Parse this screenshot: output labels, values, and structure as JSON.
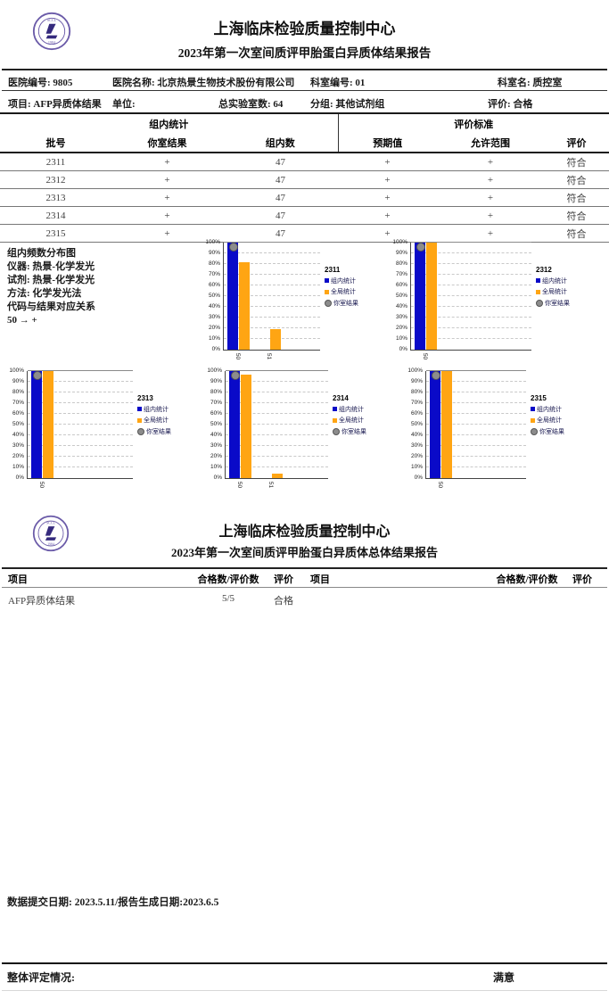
{
  "logo": {
    "top_text": "SCCL",
    "bottom_text": "1984",
    "ring_color": "#6a5aa8",
    "mark_color": "#352a7d"
  },
  "report1": {
    "center_name": "上海临床检验质量控制中心",
    "report_title": "2023年第一次室间质评甲胎蛋白异质体结果报告",
    "info_row1": [
      {
        "label": "医院编号:",
        "value": "9805"
      },
      {
        "label": "医院名称:",
        "value": "北京热景生物技术股份有限公司"
      },
      {
        "label": "科室编号:",
        "value": "01"
      },
      {
        "label": "科室名:",
        "value": "质控室"
      }
    ],
    "info_row2": [
      {
        "label": "项目:",
        "value": "AFP异质体结果"
      },
      {
        "label": "单位:",
        "value": ""
      },
      {
        "label": "总实验室数:",
        "value": "64"
      },
      {
        "label": "分组:",
        "value": "其他试剂组"
      },
      {
        "label": "评价:",
        "value": "合格"
      }
    ],
    "batch_table": {
      "group_header_left": "组内统计",
      "group_header_right": "评价标准",
      "columns": [
        "批号",
        "你室结果",
        "组内数",
        "预期值",
        "允许范围",
        "评价"
      ],
      "rows": [
        [
          "2311",
          "+",
          "47",
          "+",
          "+",
          "符合"
        ],
        [
          "2312",
          "+",
          "47",
          "+",
          "+",
          "符合"
        ],
        [
          "2313",
          "+",
          "47",
          "+",
          "+",
          "符合"
        ],
        [
          "2314",
          "+",
          "47",
          "+",
          "+",
          "符合"
        ],
        [
          "2315",
          "+",
          "47",
          "+",
          "+",
          "符合"
        ]
      ]
    },
    "freq_block": {
      "title": "组内频数分布图",
      "lines": [
        "仪器: 热景-化学发光",
        "试剂: 热景-化学发光",
        "方法: 化学发光法",
        "代码与结果对应关系",
        "50 → +"
      ]
    }
  },
  "chart_data": [
    {
      "type": "bar",
      "title": "2311",
      "categories": [
        "50",
        "51"
      ],
      "ylim": [
        0,
        100
      ],
      "grid": true,
      "yticks": [
        "0%",
        "10%",
        "20%",
        "30%",
        "40%",
        "50%",
        "60%",
        "70%",
        "80%",
        "90%",
        "100%"
      ],
      "legend_position": "right",
      "series": [
        {
          "name": "组内统计",
          "color": "#0a0ac8",
          "values": [
            100,
            0
          ]
        },
        {
          "name": "全局统计",
          "color": "#ffa513",
          "values": [
            82,
            19
          ]
        }
      ],
      "marker": {
        "name": "你室结果",
        "color": "#8c8c8c",
        "category": "50",
        "value": 96
      }
    },
    {
      "type": "bar",
      "title": "2312",
      "categories": [
        "50"
      ],
      "ylim": [
        0,
        100
      ],
      "grid": true,
      "yticks": [
        "0%",
        "10%",
        "20%",
        "30%",
        "40%",
        "50%",
        "60%",
        "70%",
        "80%",
        "90%",
        "100%"
      ],
      "legend_position": "right",
      "series": [
        {
          "name": "组内统计",
          "color": "#0a0ac8",
          "values": [
            100
          ]
        },
        {
          "name": "全局统计",
          "color": "#ffa513",
          "values": [
            100
          ]
        }
      ],
      "marker": {
        "name": "你室结果",
        "color": "#8c8c8c",
        "category": "50",
        "value": 96
      }
    },
    {
      "type": "bar",
      "title": "2313",
      "categories": [
        "50"
      ],
      "ylim": [
        0,
        100
      ],
      "grid": true,
      "yticks": [
        "0%",
        "10%",
        "20%",
        "30%",
        "40%",
        "50%",
        "60%",
        "70%",
        "80%",
        "90%",
        "100%"
      ],
      "legend_position": "right",
      "series": [
        {
          "name": "组内统计",
          "color": "#0a0ac8",
          "values": [
            100
          ]
        },
        {
          "name": "全局统计",
          "color": "#ffa513",
          "values": [
            100
          ]
        }
      ],
      "marker": {
        "name": "你室结果",
        "color": "#8c8c8c",
        "category": "50",
        "value": 96
      }
    },
    {
      "type": "bar",
      "title": "2314",
      "categories": [
        "50",
        "51"
      ],
      "ylim": [
        0,
        100
      ],
      "grid": true,
      "yticks": [
        "0%",
        "10%",
        "20%",
        "30%",
        "40%",
        "50%",
        "60%",
        "70%",
        "80%",
        "90%",
        "100%"
      ],
      "legend_position": "right",
      "series": [
        {
          "name": "组内统计",
          "color": "#0a0ac8",
          "values": [
            100,
            0
          ]
        },
        {
          "name": "全局统计",
          "color": "#ffa513",
          "values": [
            97,
            4
          ]
        }
      ],
      "marker": {
        "name": "你室结果",
        "color": "#8c8c8c",
        "category": "50",
        "value": 96
      }
    },
    {
      "type": "bar",
      "title": "2315",
      "categories": [
        "50"
      ],
      "ylim": [
        0,
        100
      ],
      "grid": true,
      "yticks": [
        "0%",
        "10%",
        "20%",
        "30%",
        "40%",
        "50%",
        "60%",
        "70%",
        "80%",
        "90%",
        "100%"
      ],
      "legend_position": "right",
      "series": [
        {
          "name": "组内统计",
          "color": "#0a0ac8",
          "values": [
            100
          ]
        },
        {
          "name": "全局统计",
          "color": "#ffa513",
          "values": [
            100
          ]
        }
      ],
      "marker": {
        "name": "你室结果",
        "color": "#8c8c8c",
        "category": "50",
        "value": 96
      }
    }
  ],
  "report2": {
    "center_name": "上海临床检验质量控制中心",
    "report_title": "2023年第一次室间质评甲胎蛋白异质体总体结果报告",
    "summary_table": {
      "columns": [
        "项目",
        "合格数/评价数",
        "评价",
        "项目",
        "合格数/评价数",
        "评价"
      ],
      "row": {
        "item": "AFP异质体结果",
        "ratio": "5/5",
        "evaluation": "合格"
      }
    }
  },
  "footer": {
    "dates": "数据提交日期: 2023.5.11/报告生成日期:2023.6.5",
    "overall_label": "整体评定情况:",
    "overall_value": "满意"
  }
}
